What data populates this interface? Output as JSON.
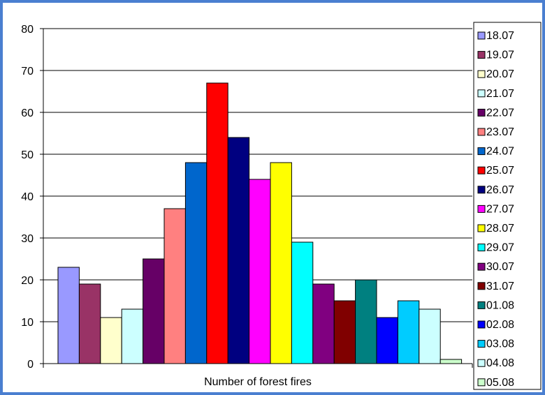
{
  "chart_data": {
    "type": "bar",
    "xlabel": "Number of forest fires",
    "ylim": [
      0,
      80
    ],
    "yticks": [
      0,
      10,
      20,
      30,
      40,
      50,
      60,
      70,
      80
    ],
    "grid": true,
    "legend_position": "right",
    "series": [
      {
        "name": "18.07",
        "value": 23,
        "color": "#9999ff"
      },
      {
        "name": "19.07",
        "value": 19,
        "color": "#993366"
      },
      {
        "name": "20.07",
        "value": 11,
        "color": "#ffffcc"
      },
      {
        "name": "21.07",
        "value": 13,
        "color": "#ccffff"
      },
      {
        "name": "22.07",
        "value": 25,
        "color": "#660066"
      },
      {
        "name": "23.07",
        "value": 37,
        "color": "#ff8080"
      },
      {
        "name": "24.07",
        "value": 48,
        "color": "#0066cc"
      },
      {
        "name": "25.07",
        "value": 67,
        "color": "#ff0000"
      },
      {
        "name": "26.07",
        "value": 54,
        "color": "#000080"
      },
      {
        "name": "27.07",
        "value": 44,
        "color": "#ff00ff"
      },
      {
        "name": "28.07",
        "value": 48,
        "color": "#ffff00"
      },
      {
        "name": "29.07",
        "value": 29,
        "color": "#00ffff"
      },
      {
        "name": "30.07",
        "value": 19,
        "color": "#800080"
      },
      {
        "name": "31.07",
        "value": 15,
        "color": "#800000"
      },
      {
        "name": "01.08",
        "value": 20,
        "color": "#008080"
      },
      {
        "name": "02.08",
        "value": 11,
        "color": "#0000ff"
      },
      {
        "name": "03.08",
        "value": 15,
        "color": "#00ccff"
      },
      {
        "name": "04.08",
        "value": 13,
        "color": "#ccffff"
      },
      {
        "name": "05.08",
        "value": 1,
        "color": "#ccffcc"
      }
    ]
  }
}
